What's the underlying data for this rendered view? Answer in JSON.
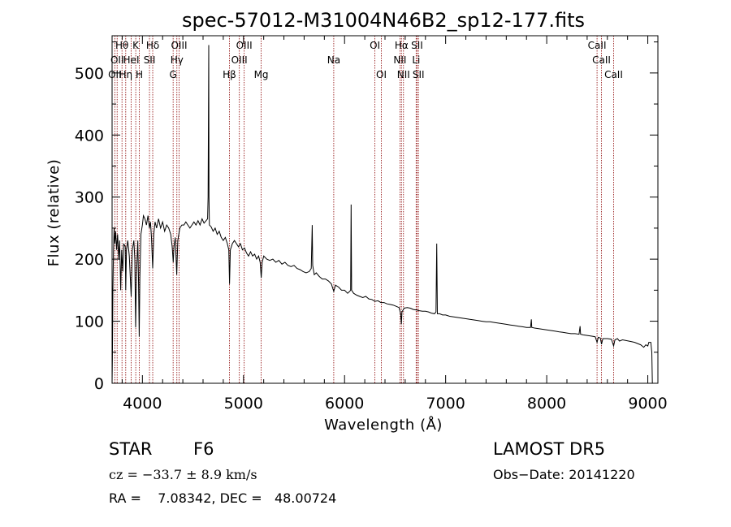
{
  "chart_data": {
    "type": "line",
    "title": "spec-57012-M31004N46B2_sp12-177.fits",
    "xlabel": "Wavelength (Å)",
    "ylabel": "Flux (relative)",
    "xlim": [
      3700,
      9100
    ],
    "ylim": [
      0,
      560
    ],
    "xticks": [
      {
        "v": 4000,
        "label": "4000"
      },
      {
        "v": 5000,
        "label": "5000"
      },
      {
        "v": 6000,
        "label": "6000"
      },
      {
        "v": 7000,
        "label": "7000"
      },
      {
        "v": 8000,
        "label": "8000"
      },
      {
        "v": 9000,
        "label": "9000"
      }
    ],
    "yticks": [
      {
        "v": 0,
        "label": "0"
      },
      {
        "v": 100,
        "label": "100"
      },
      {
        "v": 200,
        "label": "200"
      },
      {
        "v": 300,
        "label": "300"
      },
      {
        "v": 400,
        "label": "400"
      },
      {
        "v": 500,
        "label": "500"
      }
    ],
    "line_color": "#000000",
    "marker_color": "#8b0000",
    "spectral_lines": [
      {
        "wl": 3727,
        "label": "OII",
        "row": 3
      },
      {
        "wl": 3750,
        "label": "OII",
        "row": 2
      },
      {
        "wl": 3798,
        "label": "Hθ",
        "row": 1
      },
      {
        "wl": 3835,
        "label": "Hη",
        "row": 3
      },
      {
        "wl": 3889,
        "label": "HeI",
        "row": 2
      },
      {
        "wl": 3934,
        "label": "K",
        "row": 1
      },
      {
        "wl": 3969,
        "label": "H",
        "row": 3
      },
      {
        "wl": 4070,
        "label": "SII",
        "row": 2
      },
      {
        "wl": 4102,
        "label": "Hδ",
        "row": 1
      },
      {
        "wl": 4304,
        "label": "G",
        "row": 3
      },
      {
        "wl": 4341,
        "label": "Hγ",
        "row": 2
      },
      {
        "wl": 4363,
        "label": "OIII",
        "row": 1
      },
      {
        "wl": 4861,
        "label": "Hβ",
        "row": 3
      },
      {
        "wl": 4959,
        "label": "OIII",
        "row": 2
      },
      {
        "wl": 5007,
        "label": "OIII",
        "row": 1
      },
      {
        "wl": 5175,
        "label": "Mg",
        "row": 3
      },
      {
        "wl": 5893,
        "label": "Na",
        "row": 2
      },
      {
        "wl": 6300,
        "label": "OI",
        "row": 1
      },
      {
        "wl": 6364,
        "label": "OI",
        "row": 3
      },
      {
        "wl": 6548,
        "label": "NII",
        "row": 2
      },
      {
        "wl": 6563,
        "label": "Hα",
        "row": 1
      },
      {
        "wl": 6583,
        "label": "NII",
        "row": 3
      },
      {
        "wl": 6708,
        "label": "Li",
        "row": 2
      },
      {
        "wl": 6717,
        "label": "SII",
        "row": 1
      },
      {
        "wl": 6731,
        "label": "SII",
        "row": 3
      },
      {
        "wl": 8498,
        "label": "CaII",
        "row": 1
      },
      {
        "wl": 8542,
        "label": "CaII",
        "row": 2
      },
      {
        "wl": 8662,
        "label": "CaII",
        "row": 3
      }
    ],
    "spectrum": [
      [
        3700,
        0
      ],
      [
        3703,
        40
      ],
      [
        3708,
        150
      ],
      [
        3714,
        210
      ],
      [
        3720,
        250
      ],
      [
        3727,
        225
      ],
      [
        3735,
        245
      ],
      [
        3745,
        215
      ],
      [
        3755,
        240
      ],
      [
        3765,
        200
      ],
      [
        3775,
        230
      ],
      [
        3785,
        150
      ],
      [
        3795,
        215
      ],
      [
        3805,
        180
      ],
      [
        3815,
        225
      ],
      [
        3830,
        220
      ],
      [
        3835,
        150
      ],
      [
        3842,
        215
      ],
      [
        3855,
        230
      ],
      [
        3870,
        205
      ],
      [
        3889,
        140
      ],
      [
        3900,
        215
      ],
      [
        3915,
        230
      ],
      [
        3925,
        200
      ],
      [
        3933,
        90
      ],
      [
        3940,
        170
      ],
      [
        3955,
        230
      ],
      [
        3962,
        160
      ],
      [
        3968,
        75
      ],
      [
        3975,
        170
      ],
      [
        3985,
        240
      ],
      [
        4000,
        255
      ],
      [
        4010,
        270
      ],
      [
        4025,
        265
      ],
      [
        4040,
        255
      ],
      [
        4055,
        270
      ],
      [
        4070,
        250
      ],
      [
        4080,
        260
      ],
      [
        4090,
        235
      ],
      [
        4102,
        185
      ],
      [
        4112,
        240
      ],
      [
        4125,
        260
      ],
      [
        4140,
        250
      ],
      [
        4160,
        265
      ],
      [
        4180,
        250
      ],
      [
        4200,
        260
      ],
      [
        4220,
        245
      ],
      [
        4240,
        255
      ],
      [
        4260,
        250
      ],
      [
        4280,
        240
      ],
      [
        4295,
        220
      ],
      [
        4305,
        195
      ],
      [
        4312,
        220
      ],
      [
        4325,
        235
      ],
      [
        4340,
        175
      ],
      [
        4350,
        230
      ],
      [
        4370,
        250
      ],
      [
        4390,
        255
      ],
      [
        4410,
        255
      ],
      [
        4430,
        260
      ],
      [
        4450,
        255
      ],
      [
        4470,
        250
      ],
      [
        4490,
        255
      ],
      [
        4510,
        260
      ],
      [
        4530,
        255
      ],
      [
        4550,
        262
      ],
      [
        4570,
        255
      ],
      [
        4590,
        265
      ],
      [
        4610,
        258
      ],
      [
        4630,
        262
      ],
      [
        4645,
        265
      ],
      [
        4650,
        300
      ],
      [
        4653,
        420
      ],
      [
        4656,
        545
      ],
      [
        4659,
        300
      ],
      [
        4663,
        255
      ],
      [
        4680,
        252
      ],
      [
        4700,
        245
      ],
      [
        4720,
        250
      ],
      [
        4740,
        240
      ],
      [
        4760,
        245
      ],
      [
        4780,
        235
      ],
      [
        4800,
        230
      ],
      [
        4820,
        235
      ],
      [
        4840,
        225
      ],
      [
        4855,
        215
      ],
      [
        4862,
        160
      ],
      [
        4870,
        215
      ],
      [
        4890,
        225
      ],
      [
        4910,
        230
      ],
      [
        4930,
        225
      ],
      [
        4950,
        220
      ],
      [
        4970,
        225
      ],
      [
        4990,
        215
      ],
      [
        5010,
        218
      ],
      [
        5030,
        210
      ],
      [
        5050,
        205
      ],
      [
        5070,
        212
      ],
      [
        5090,
        205
      ],
      [
        5110,
        208
      ],
      [
        5130,
        200
      ],
      [
        5150,
        205
      ],
      [
        5165,
        195
      ],
      [
        5175,
        170
      ],
      [
        5185,
        195
      ],
      [
        5200,
        205
      ],
      [
        5230,
        200
      ],
      [
        5260,
        198
      ],
      [
        5290,
        200
      ],
      [
        5320,
        195
      ],
      [
        5350,
        198
      ],
      [
        5380,
        192
      ],
      [
        5410,
        195
      ],
      [
        5440,
        190
      ],
      [
        5470,
        188
      ],
      [
        5500,
        190
      ],
      [
        5530,
        185
      ],
      [
        5560,
        183
      ],
      [
        5590,
        180
      ],
      [
        5620,
        178
      ],
      [
        5650,
        180
      ],
      [
        5670,
        185
      ],
      [
        5680,
        255
      ],
      [
        5685,
        190
      ],
      [
        5700,
        175
      ],
      [
        5720,
        178
      ],
      [
        5750,
        172
      ],
      [
        5780,
        168
      ],
      [
        5810,
        168
      ],
      [
        5840,
        165
      ],
      [
        5870,
        160
      ],
      [
        5893,
        148
      ],
      [
        5910,
        158
      ],
      [
        5940,
        155
      ],
      [
        5970,
        150
      ],
      [
        6000,
        150
      ],
      [
        6030,
        145
      ],
      [
        6050,
        148
      ],
      [
        6060,
        150
      ],
      [
        6065,
        288
      ],
      [
        6070,
        150
      ],
      [
        6090,
        145
      ],
      [
        6120,
        142
      ],
      [
        6150,
        140
      ],
      [
        6180,
        138
      ],
      [
        6210,
        140
      ],
      [
        6240,
        136
      ],
      [
        6270,
        135
      ],
      [
        6300,
        132
      ],
      [
        6330,
        133
      ],
      [
        6360,
        130
      ],
      [
        6390,
        130
      ],
      [
        6420,
        128
      ],
      [
        6450,
        127
      ],
      [
        6480,
        126
      ],
      [
        6510,
        124
      ],
      [
        6540,
        122
      ],
      [
        6555,
        112
      ],
      [
        6562,
        95
      ],
      [
        6568,
        115
      ],
      [
        6590,
        121
      ],
      [
        6620,
        122
      ],
      [
        6650,
        121
      ],
      [
        6680,
        119
      ],
      [
        6710,
        118
      ],
      [
        6740,
        117
      ],
      [
        6770,
        116
      ],
      [
        6800,
        116
      ],
      [
        6830,
        115
      ],
      [
        6860,
        113
      ],
      [
        6890,
        112
      ],
      [
        6905,
        115
      ],
      [
        6912,
        225
      ],
      [
        6918,
        112
      ],
      [
        6940,
        112
      ],
      [
        6970,
        110
      ],
      [
        7000,
        110
      ],
      [
        7040,
        108
      ],
      [
        7080,
        107
      ],
      [
        7120,
        106
      ],
      [
        7160,
        105
      ],
      [
        7200,
        104
      ],
      [
        7240,
        103
      ],
      [
        7280,
        102
      ],
      [
        7320,
        101
      ],
      [
        7360,
        100
      ],
      [
        7400,
        99
      ],
      [
        7440,
        99
      ],
      [
        7480,
        98
      ],
      [
        7520,
        97
      ],
      [
        7560,
        96
      ],
      [
        7600,
        95
      ],
      [
        7640,
        94
      ],
      [
        7680,
        93
      ],
      [
        7720,
        92
      ],
      [
        7760,
        91
      ],
      [
        7800,
        90
      ],
      [
        7840,
        90
      ],
      [
        7848,
        103
      ],
      [
        7852,
        90
      ],
      [
        7880,
        89
      ],
      [
        7920,
        88
      ],
      [
        7960,
        87
      ],
      [
        8000,
        86
      ],
      [
        8040,
        85
      ],
      [
        8080,
        84
      ],
      [
        8120,
        83
      ],
      [
        8160,
        82
      ],
      [
        8200,
        81
      ],
      [
        8240,
        80
      ],
      [
        8280,
        80
      ],
      [
        8320,
        79
      ],
      [
        8330,
        92
      ],
      [
        8335,
        79
      ],
      [
        8360,
        78
      ],
      [
        8400,
        77
      ],
      [
        8440,
        76
      ],
      [
        8480,
        75
      ],
      [
        8498,
        66
      ],
      [
        8510,
        74
      ],
      [
        8530,
        73
      ],
      [
        8542,
        63
      ],
      [
        8555,
        72
      ],
      [
        8600,
        72
      ],
      [
        8640,
        71
      ],
      [
        8662,
        60
      ],
      [
        8675,
        70
      ],
      [
        8700,
        72
      ],
      [
        8720,
        68
      ],
      [
        8750,
        70
      ],
      [
        8780,
        69
      ],
      [
        8810,
        68
      ],
      [
        8840,
        67
      ],
      [
        8870,
        66
      ],
      [
        8900,
        64
      ],
      [
        8930,
        62
      ],
      [
        8960,
        58
      ],
      [
        8980,
        62
      ],
      [
        9000,
        60
      ],
      [
        9010,
        66
      ],
      [
        9030,
        66
      ],
      [
        9040,
        50
      ],
      [
        9045,
        0
      ]
    ]
  },
  "info": {
    "object_class": "STAR",
    "subclass": "F6",
    "survey": "LAMOST DR5",
    "redshift_text": "cz = −33.7 ± 8.9 km/s",
    "obs_date": "Obs−Date: 20141220",
    "coords": "RA =    7.08342, DEC =   48.00724"
  }
}
